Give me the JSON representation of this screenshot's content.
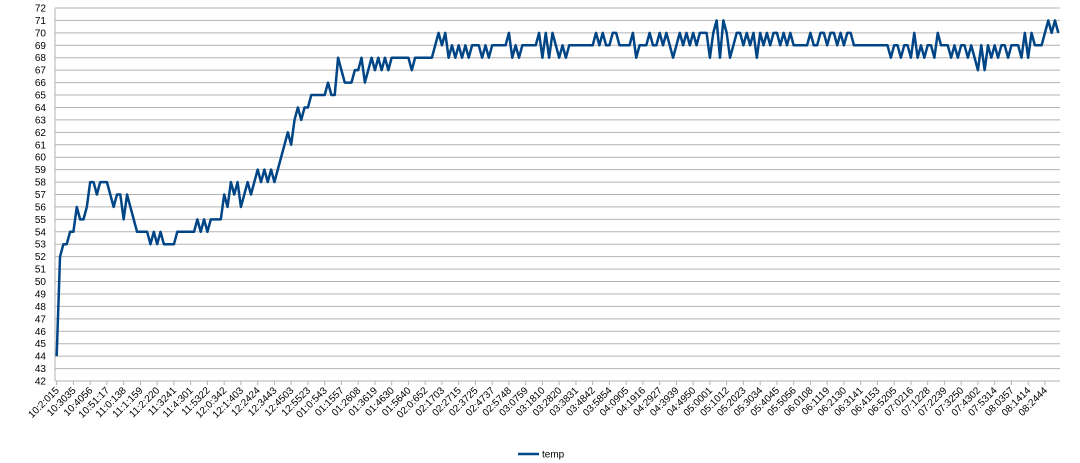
{
  "chart_data": {
    "type": "line",
    "categories": [
      "10:2:015",
      null,
      null,
      null,
      null,
      "10:3035",
      null,
      null,
      null,
      null,
      "10:4056",
      null,
      null,
      null,
      null,
      "10:51:17",
      null,
      null,
      null,
      null,
      "11:0:138",
      null,
      null,
      null,
      null,
      "11:1:159",
      null,
      null,
      null,
      null,
      "11:2:220",
      null,
      null,
      null,
      null,
      "11:3241",
      null,
      null,
      null,
      null,
      "11:4:301",
      null,
      null,
      null,
      null,
      "11:5322",
      null,
      null,
      null,
      null,
      "12:0:342",
      null,
      null,
      null,
      null,
      "12:1:403",
      null,
      null,
      null,
      null,
      "12:2424",
      null,
      null,
      null,
      null,
      "12:3443",
      null,
      null,
      null,
      null,
      "12:4503",
      null,
      null,
      null,
      null,
      "12:5523",
      null,
      null,
      null,
      null,
      "01:0:543",
      null,
      null,
      null,
      null,
      "01:1557",
      null,
      null,
      null,
      null,
      "01:2608",
      null,
      null,
      null,
      null,
      "01:3619",
      null,
      null,
      null,
      null,
      "01:4630",
      null,
      null,
      null,
      null,
      "01:5640",
      null,
      null,
      null,
      null,
      "02:0:652",
      null,
      null,
      null,
      null,
      "02:1703",
      null,
      null,
      null,
      null,
      "02:2715",
      null,
      null,
      null,
      null,
      "02:3725",
      null,
      null,
      null,
      null,
      "02:4737",
      null,
      null,
      null,
      null,
      "02:5748",
      null,
      null,
      null,
      null,
      "03:0759",
      null,
      null,
      null,
      null,
      "03:1810",
      null,
      null,
      null,
      null,
      "03:2820",
      null,
      null,
      null,
      null,
      "03:3831",
      null,
      null,
      null,
      null,
      "03:4842",
      null,
      null,
      null,
      null,
      "03:5854",
      null,
      null,
      null,
      null,
      "04:0905",
      null,
      null,
      null,
      null,
      "04:1916",
      null,
      null,
      null,
      null,
      "04:2927",
      null,
      null,
      null,
      null,
      "04:3939",
      null,
      null,
      null,
      null,
      "04:4950",
      null,
      null,
      null,
      null,
      "05:0001",
      null,
      null,
      null,
      null,
      "05:1012",
      null,
      null,
      null,
      null,
      "05:2023",
      null,
      null,
      null,
      null,
      "05:3034",
      null,
      null,
      null,
      null,
      "05:4045",
      null,
      null,
      null,
      null,
      "05:5056",
      null,
      null,
      null,
      null,
      "06:0108",
      null,
      null,
      null,
      null,
      "06:1119",
      null,
      null,
      null,
      null,
      "06:2130",
      null,
      null,
      null,
      null,
      "06:3141",
      null,
      null,
      null,
      null,
      "06:4153",
      null,
      null,
      null,
      null,
      "06:5205",
      null,
      null,
      null,
      null,
      "07:0216",
      null,
      null,
      null,
      null,
      "07:1228",
      null,
      null,
      null,
      null,
      "07:2239",
      null,
      null,
      null,
      null,
      "07:3250",
      null,
      null,
      null,
      null,
      "07:4302",
      null,
      null,
      null,
      null,
      "07:5314",
      null,
      null,
      null,
      null,
      "08:0357",
      null,
      null,
      null,
      null,
      "08:1414",
      null,
      null,
      null,
      null,
      "08:2444",
      null,
      null,
      null,
      null
    ],
    "series": [
      {
        "name": "temp",
        "color": "#004586",
        "values": [
          44,
          52,
          53,
          53,
          54,
          54,
          56,
          55,
          55,
          56,
          58,
          58,
          57,
          58,
          58,
          58,
          57,
          56,
          57,
          57,
          55,
          57,
          56,
          55,
          54,
          54,
          54,
          54,
          53,
          54,
          53,
          54,
          53,
          53,
          53,
          53,
          54,
          54,
          54,
          54,
          54,
          54,
          55,
          54,
          55,
          54,
          55,
          55,
          55,
          55,
          57,
          56,
          58,
          57,
          58,
          56,
          57,
          58,
          57,
          58,
          59,
          58,
          59,
          58,
          59,
          58,
          59,
          60,
          61,
          62,
          61,
          63,
          64,
          63,
          64,
          64,
          65,
          65,
          65,
          65,
          65,
          66,
          65,
          65,
          68,
          67,
          66,
          66,
          66,
          67,
          67,
          68,
          66,
          67,
          68,
          67,
          68,
          67,
          68,
          67,
          68,
          68,
          68,
          68,
          68,
          68,
          67,
          68,
          68,
          68,
          68,
          68,
          68,
          69,
          70,
          69,
          70,
          68,
          69,
          68,
          69,
          68,
          69,
          68,
          69,
          69,
          69,
          68,
          69,
          68,
          69,
          69,
          69,
          69,
          69,
          70,
          68,
          69,
          68,
          69,
          69,
          69,
          69,
          69,
          70,
          68,
          70,
          68,
          70,
          69,
          68,
          69,
          68,
          69,
          69,
          69,
          69,
          69,
          69,
          69,
          69,
          70,
          69,
          70,
          69,
          69,
          70,
          70,
          69,
          69,
          69,
          69,
          70,
          68,
          69,
          69,
          69,
          70,
          69,
          69,
          70,
          69,
          70,
          69,
          68,
          69,
          70,
          69,
          70,
          69,
          70,
          69,
          70,
          70,
          70,
          68,
          70,
          71,
          68,
          71,
          70,
          68,
          69,
          70,
          70,
          69,
          70,
          69,
          70,
          68,
          70,
          69,
          70,
          69,
          70,
          70,
          69,
          70,
          69,
          70,
          69,
          69,
          69,
          69,
          69,
          70,
          69,
          69,
          70,
          70,
          69,
          70,
          70,
          69,
          70,
          69,
          70,
          70,
          69,
          69,
          69,
          69,
          69,
          69,
          69,
          69,
          69,
          69,
          69,
          68,
          69,
          69,
          68,
          69,
          69,
          68,
          70,
          68,
          69,
          68,
          69,
          69,
          68,
          70,
          69,
          69,
          69,
          68,
          69,
          68,
          69,
          69,
          68,
          69,
          68,
          67,
          69,
          67,
          69,
          68,
          69,
          68,
          69,
          69,
          68,
          69,
          69,
          69,
          68,
          70,
          68,
          70,
          69,
          69,
          69,
          70,
          71,
          70,
          71,
          70
        ]
      }
    ],
    "ylim": [
      42,
      72
    ],
    "yticks": [
      42,
      43,
      44,
      45,
      46,
      47,
      48,
      49,
      50,
      51,
      52,
      53,
      54,
      55,
      56,
      57,
      58,
      59,
      60,
      61,
      62,
      63,
      64,
      65,
      66,
      67,
      68,
      69,
      70,
      71,
      72
    ],
    "grid": true,
    "legend": "bottom"
  }
}
